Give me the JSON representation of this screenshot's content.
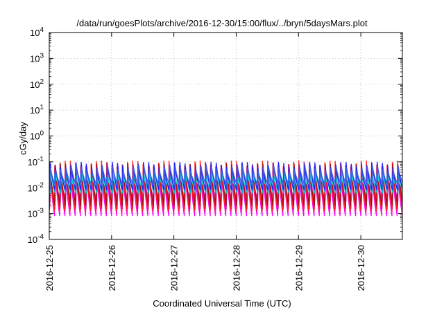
{
  "chart_data": {
    "type": "line",
    "title": "/data/run/goesPlots/archive/2016-12-30/15:00/flux/../bryn/5daysMars.plot",
    "xlabel": "Coordinated Universal Time (UTC)",
    "ylabel": "cGy/day",
    "yscale": "log",
    "ylim": [
      0.0001,
      10000
    ],
    "xlim": [
      "2016-12-25T00:00",
      "2016-12-30T16:00"
    ],
    "grid": true,
    "legend": "none",
    "y_tick_labels": [
      {
        "base": "10",
        "exp": "-4",
        "value": 0.0001
      },
      {
        "base": "10",
        "exp": "-3",
        "value": 0.001
      },
      {
        "base": "10",
        "exp": "-2",
        "value": 0.01
      },
      {
        "base": "10",
        "exp": "-1",
        "value": 0.1
      },
      {
        "base": "10",
        "exp": "0",
        "value": 1
      },
      {
        "base": "10",
        "exp": "1",
        "value": 10
      },
      {
        "base": "10",
        "exp": "2",
        "value": 100
      },
      {
        "base": "10",
        "exp": "3",
        "value": 1000
      },
      {
        "base": "10",
        "exp": "4",
        "value": 10000
      }
    ],
    "x_tick_labels": [
      "2016-12-25",
      "2016-12-26",
      "2016-12-27",
      "2016-12-28",
      "2016-12-29",
      "2016-12-30"
    ],
    "sawtooth_period_hours": 2,
    "series": [
      {
        "color": "#ff00ff",
        "peak": 0.05,
        "trough": 0.0008
      },
      {
        "color": "#d000d0",
        "peak": 0.04,
        "trough": 0.0015
      },
      {
        "color": "#e040e0",
        "peak": 0.03,
        "trough": 0.003
      },
      {
        "color": "#ff2020",
        "peak": 0.09,
        "trough": 0.0012
      },
      {
        "color": "#a01010",
        "peak": 0.07,
        "trough": 0.002
      },
      {
        "color": "#00c0c0",
        "peak": 0.04,
        "trough": 0.006
      },
      {
        "color": "#20e0e0",
        "peak": 0.03,
        "trough": 0.01
      },
      {
        "color": "#2020ff",
        "peak": 0.08,
        "trough": 0.008
      },
      {
        "color": "#4060e0",
        "peak": 0.06,
        "trough": 0.012
      }
    ]
  }
}
